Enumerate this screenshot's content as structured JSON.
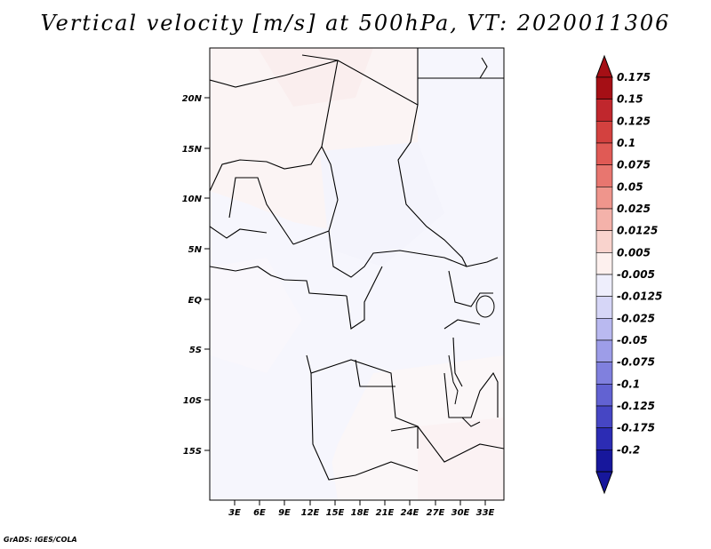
{
  "title": "Vertical velocity [m/s] at 500hPa, VT: 2020011306",
  "credit": "GrADS: IGES/COLA",
  "map": {
    "lat_labels": [
      "20N",
      "15N",
      "10N",
      "5N",
      "EQ",
      "5S",
      "10S",
      "15S"
    ],
    "lon_labels": [
      "3E",
      "6E",
      "9E",
      "12E",
      "15E",
      "18E",
      "21E",
      "24E",
      "27E",
      "30E",
      "33E"
    ]
  },
  "colorbar": {
    "labels": [
      "0.175",
      "0.15",
      "0.125",
      "0.1",
      "0.075",
      "0.05",
      "0.025",
      "0.0125",
      "0.005",
      "-0.005",
      "-0.0125",
      "-0.025",
      "-0.05",
      "-0.075",
      "-0.1",
      "-0.125",
      "-0.175",
      "-0.2"
    ],
    "colors": [
      "#a50f15",
      "#c0272d",
      "#d3413f",
      "#e05a55",
      "#e8766f",
      "#ef958c",
      "#f4b2aa",
      "#f9d3cd",
      "#fdf0ee",
      "#eeeefc",
      "#d6d6f7",
      "#b9b9f0",
      "#9d9de8",
      "#8080de",
      "#6262d2",
      "#4646c4",
      "#2c2cb4",
      "#17179c"
    ]
  }
}
